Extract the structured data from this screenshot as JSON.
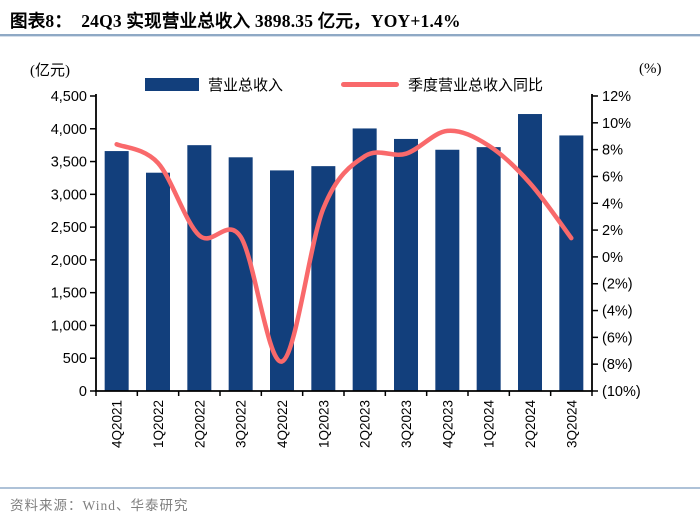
{
  "figure": {
    "title": "图表8：  24Q3 实现营业总收入 3898.35 亿元，YOY+1.4%",
    "source": "资料来源：Wind、华泰研究"
  },
  "legend": {
    "bar_label": "营业总收入",
    "line_label": "季度营业总收入同比"
  },
  "axes": {
    "left_unit": "(亿元)",
    "right_unit": "(%)",
    "left_tick_labels": [
      "4,500",
      "4,000",
      "3,500",
      "3,000",
      "2,500",
      "2,000",
      "1,500",
      "1,000",
      "500",
      "0"
    ],
    "right_tick_labels": [
      "12%",
      "10%",
      "8%",
      "6%",
      "4%",
      "2%",
      "0%",
      "(2%)",
      "(4%)",
      "(6%)",
      "(8%)",
      "(10%)"
    ]
  },
  "colors": {
    "bar": "#123F7C",
    "line": "#F9696B",
    "axis": "#000000",
    "title_rule": "#8FA9C5",
    "footer_rule": "#AEC2D8",
    "source_text": "#7F7F7F"
  },
  "chart_data": {
    "type": "bar",
    "subtype": "bar+line combo, dual axis",
    "categories": [
      "4Q2021",
      "1Q2022",
      "2Q2022",
      "3Q2022",
      "4Q2022",
      "1Q2023",
      "2Q2023",
      "3Q2023",
      "4Q2023",
      "1Q2024",
      "2Q2024",
      "3Q2024"
    ],
    "series": [
      {
        "name": "营业总收入",
        "type": "bar",
        "axis": "left",
        "unit": "亿元",
        "values": [
          3660,
          3330,
          3750,
          3565,
          3365,
          3430,
          4005,
          3845,
          3680,
          3720,
          4225,
          3898.35
        ]
      },
      {
        "name": "季度营业总收入同比",
        "type": "line",
        "axis": "right",
        "unit": "%",
        "values": [
          8.4,
          7.0,
          1.6,
          1.5,
          -7.8,
          3.6,
          7.5,
          7.7,
          9.4,
          8.3,
          5.5,
          1.4
        ]
      }
    ],
    "title": "24Q3 实现营业总收入 3898.35 亿元，YOY+1.4%",
    "xlabel": "",
    "ylabel_left": "(亿元)",
    "ylabel_right": "(%)",
    "left_axis": {
      "min": 0,
      "max": 4500,
      "step": 500
    },
    "right_axis": {
      "min": -10,
      "max": 12,
      "step": 2
    },
    "grid": false,
    "legend_position": "top-center",
    "x_label_rotation": -90
  }
}
